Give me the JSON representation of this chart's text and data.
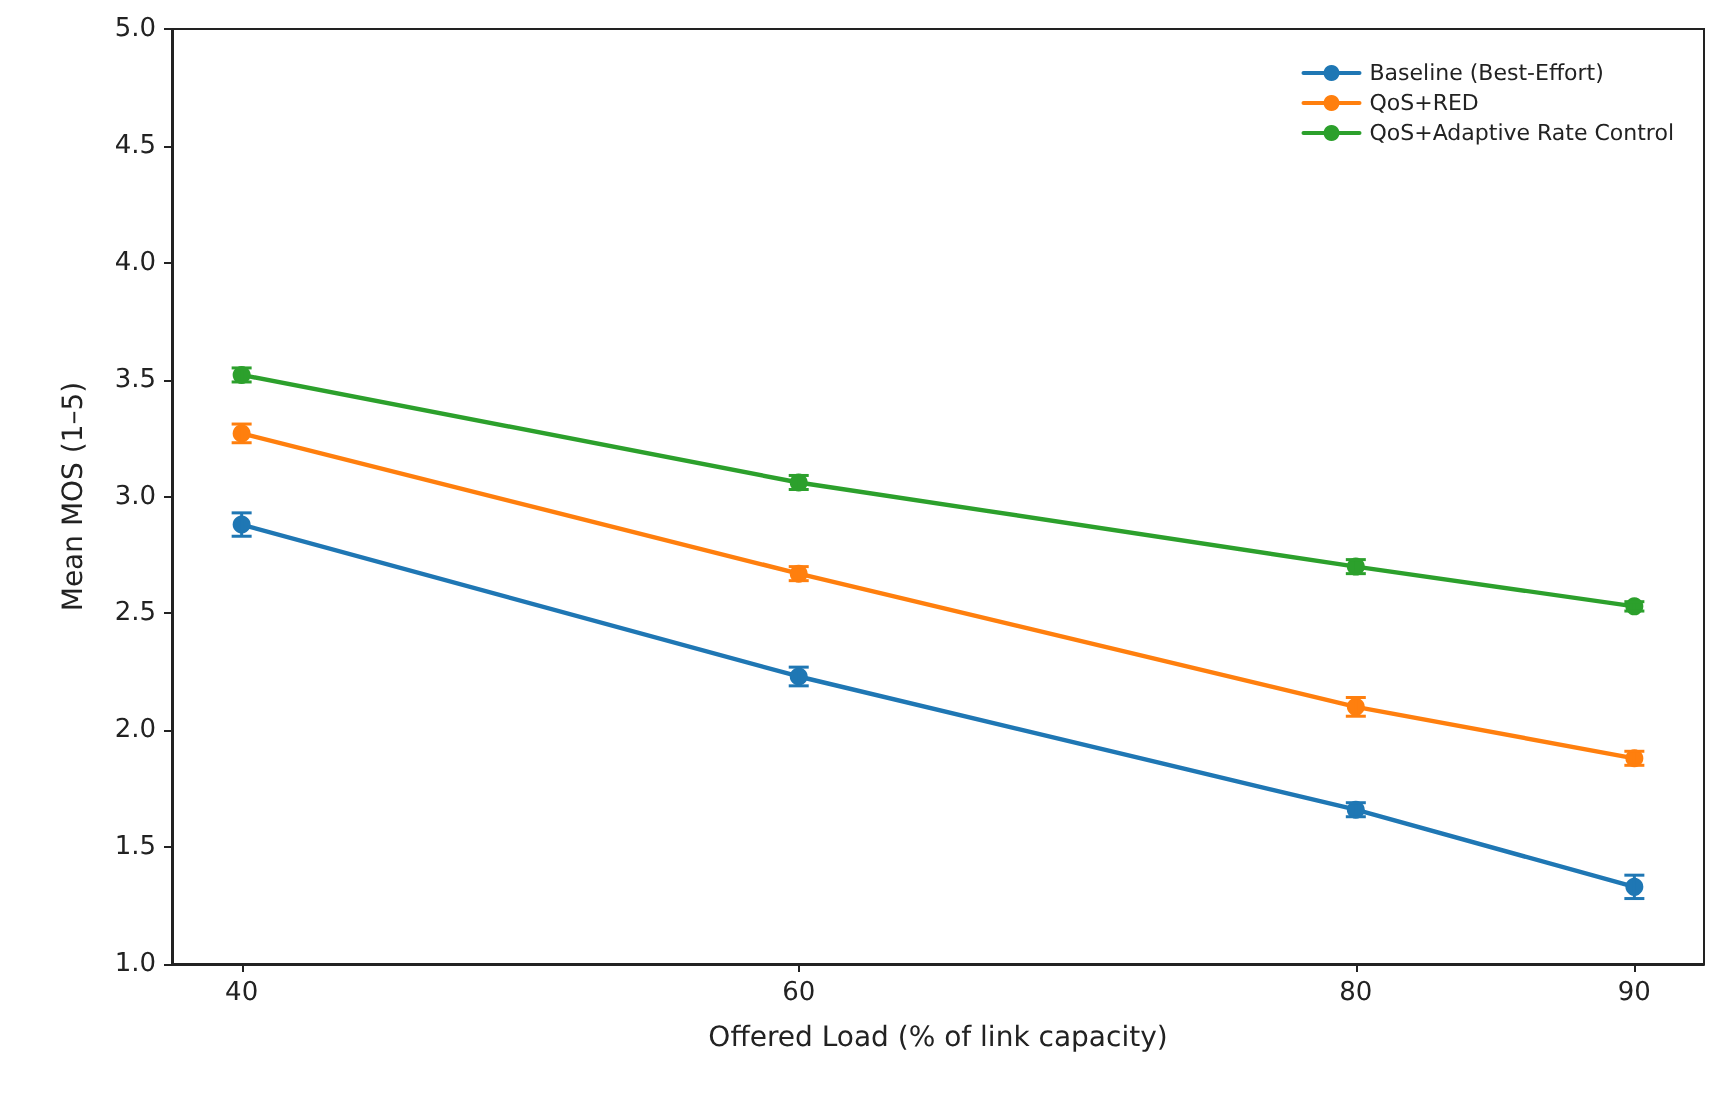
{
  "chart_data": {
    "type": "line",
    "xlabel": "Offered Load (% of link capacity)",
    "ylabel": "Mean MOS (1–5)",
    "x": [
      40,
      60,
      80,
      90
    ],
    "series": [
      {
        "name": "Baseline (Best-Effort)",
        "color": "#1f77b4",
        "values": [
          2.88,
          2.23,
          1.66,
          1.33
        ],
        "errors": [
          0.05,
          0.04,
          0.03,
          0.05
        ]
      },
      {
        "name": "QoS+RED",
        "color": "#ff7f0e",
        "values": [
          3.27,
          2.67,
          2.1,
          1.88
        ],
        "errors": [
          0.04,
          0.03,
          0.04,
          0.03
        ]
      },
      {
        "name": "QoS+Adaptive Rate Control",
        "color": "#2ca02c",
        "values": [
          3.52,
          3.06,
          2.7,
          2.53
        ],
        "errors": [
          0.03,
          0.03,
          0.03,
          0.02
        ]
      }
    ],
    "xlim": [
      37.5,
      92.5
    ],
    "xticks": [
      40,
      60,
      80,
      90
    ],
    "ylim": [
      1,
      5
    ],
    "yticks": [
      {
        "value": 1,
        "label": "1.0"
      },
      {
        "value": 1.5,
        "label": "1.5"
      },
      {
        "value": 2,
        "label": "2.0"
      },
      {
        "value": 2.5,
        "label": "2.5"
      },
      {
        "value": 3,
        "label": "3.0"
      },
      {
        "value": 3.5,
        "label": "3.5"
      },
      {
        "value": 4,
        "label": "4.0"
      },
      {
        "value": 4.5,
        "label": "4.5"
      },
      {
        "value": 5,
        "label": "5.0"
      }
    ],
    "grid": false,
    "legend": "top right",
    "marker": "circle",
    "line_style": "solid"
  }
}
